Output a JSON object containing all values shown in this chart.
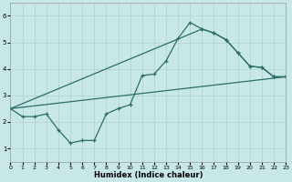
{
  "xlabel": "Humidex (Indice chaleur)",
  "bg_color": "#c8e8e8",
  "grid_color": "#b0d0d0",
  "line_color": "#2a6e68",
  "xlim": [
    0,
    23
  ],
  "ylim": [
    0.5,
    6.5
  ],
  "xticks": [
    0,
    1,
    2,
    3,
    4,
    5,
    6,
    7,
    8,
    9,
    10,
    11,
    12,
    13,
    14,
    15,
    16,
    17,
    18,
    19,
    20,
    21,
    22,
    23
  ],
  "yticks": [
    1,
    2,
    3,
    4,
    5,
    6
  ],
  "line1_x": [
    0,
    1,
    2,
    3,
    4,
    5,
    6,
    7,
    8,
    9,
    10,
    11,
    12,
    13,
    14,
    15,
    16,
    17,
    18,
    19,
    20,
    21,
    22,
    23
  ],
  "line1_y": [
    2.5,
    2.2,
    2.2,
    2.3,
    1.7,
    1.2,
    1.3,
    1.3,
    2.3,
    2.5,
    2.65,
    3.75,
    3.8,
    4.3,
    5.15,
    5.75,
    5.5,
    5.35,
    5.1,
    4.6,
    4.1,
    4.05,
    3.7,
    3.7
  ],
  "line2_x": [
    0,
    23
  ],
  "line2_y": [
    2.5,
    3.7
  ],
  "line3_x": [
    0,
    16,
    17,
    18,
    19,
    20,
    21,
    22,
    23
  ],
  "line3_y": [
    2.5,
    5.5,
    5.35,
    5.1,
    4.6,
    4.1,
    4.05,
    3.7,
    3.7
  ]
}
